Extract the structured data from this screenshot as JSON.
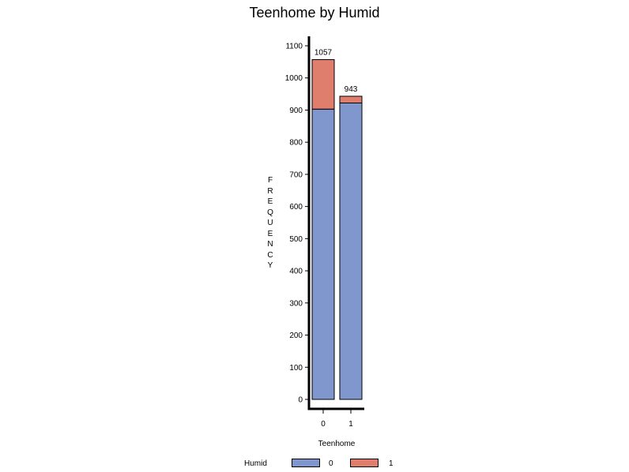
{
  "chart_data": {
    "type": "bar",
    "stacked": true,
    "title": "Teenhome by Humid",
    "xlabel": "Teenhome",
    "ylabel": "FREQUENCY",
    "categories": [
      "0",
      "1"
    ],
    "series": [
      {
        "name": "0",
        "color": "#7f97cd",
        "values": [
          903,
          922
        ]
      },
      {
        "name": "1",
        "color": "#e07e6e",
        "values": [
          154,
          21
        ]
      }
    ],
    "totals": [
      "1057",
      "943"
    ],
    "ylim": [
      0,
      1100
    ],
    "yticks": [
      0,
      100,
      200,
      300,
      400,
      500,
      600,
      700,
      800,
      900,
      1000,
      1100
    ],
    "legend": {
      "title": "Humid",
      "position": "bottom"
    },
    "grid": false
  }
}
